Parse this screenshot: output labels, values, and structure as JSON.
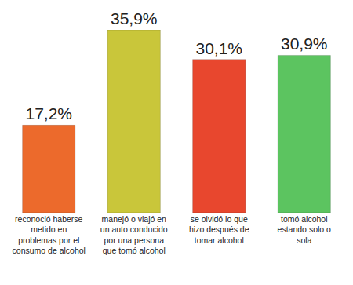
{
  "chart_data": {
    "type": "bar",
    "categories": [
      "reconoció haberse metido en problemas por el consumo de alcohol",
      "manejó o viajó en un auto conducido por una persona que tomó alcohol",
      "se olvidó lo que hizo después de tomar alcohol",
      "tomó alcohol estando solo o sola"
    ],
    "values": [
      17.2,
      35.9,
      30.1,
      30.9
    ],
    "value_labels": [
      "17,2%",
      "35,9%",
      "30,1%",
      "30,9%"
    ],
    "colors": [
      "#ec6a2c",
      "#c9c63a",
      "#e8472e",
      "#5cc460"
    ],
    "ylim": [
      0,
      35.9
    ],
    "data_labels": true,
    "tick_labels": "x",
    "grid": false
  }
}
